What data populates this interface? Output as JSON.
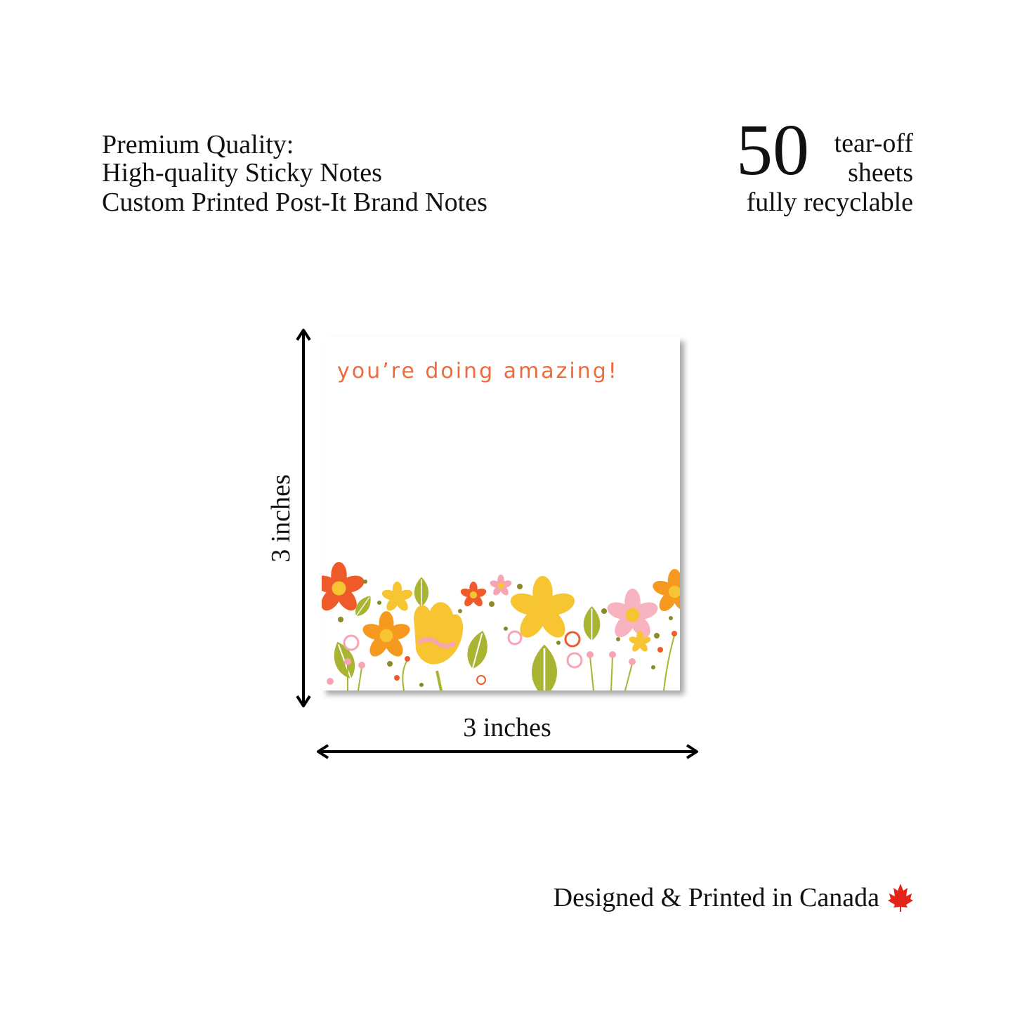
{
  "features": {
    "lines": [
      "Premium Quality:",
      "High-quality Sticky Notes",
      "Custom Printed Post-It Brand Notes"
    ]
  },
  "sheets": {
    "count": 50,
    "label_lines": [
      "tear-off",
      "sheets"
    ],
    "note": "fully recyclable"
  },
  "note": {
    "message": "you’re doing amazing!"
  },
  "dimensions": {
    "height": "3 inches",
    "width": "3 inches"
  },
  "footer": {
    "text": "Designed & Printed in Canada"
  }
}
